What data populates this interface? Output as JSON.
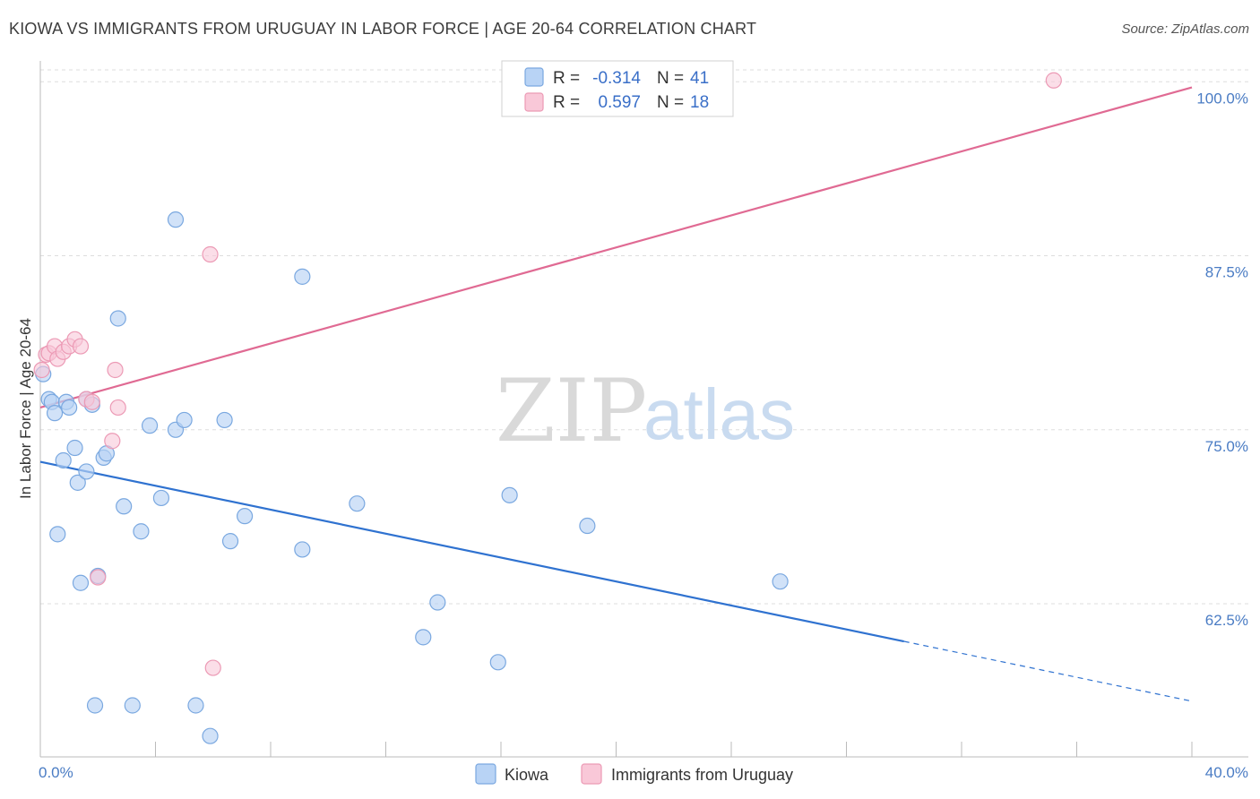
{
  "header": {
    "title": "KIOWA VS IMMIGRANTS FROM URUGUAY IN LABOR FORCE | AGE 20-64 CORRELATION CHART",
    "source": "Source: ZipAtlas.com"
  },
  "watermark": {
    "zip": "ZIP",
    "atlas": "atlas"
  },
  "legend": {
    "rows": [
      {
        "r_label": "R =",
        "r_value": "-0.314",
        "n_label": "N =",
        "n_value": "41"
      },
      {
        "r_label": "R =",
        "r_value": "0.597",
        "n_label": "N =",
        "n_value": "18"
      }
    ]
  },
  "bottom_legend": {
    "series1": "Kiowa",
    "series2": "Immigrants from Uruguay"
  },
  "colors": {
    "kiowa_fill": "#b8d3f5",
    "kiowa_stroke": "#7aa8e0",
    "kiowa_line": "#2f72d0",
    "uruguay_fill": "#f9c8d8",
    "uruguay_stroke": "#ec9ab5",
    "uruguay_line": "#e06a93",
    "grid": "#dddddd",
    "axis": "#bbbbbb"
  },
  "chart_data": {
    "type": "scatter",
    "title": "KIOWA VS IMMIGRANTS FROM URUGUAY IN LABOR FORCE | AGE 20-64 CORRELATION CHART",
    "xlabel": "",
    "ylabel": "In Labor Force | Age 20-64",
    "xlim": [
      0,
      40
    ],
    "ylim": [
      51.5,
      101.5
    ],
    "x_tick_labels": [
      "0.0%",
      "40.0%"
    ],
    "y_ticks": [
      62.5,
      75.0,
      87.5,
      100.0
    ],
    "y_tick_labels": [
      "62.5%",
      "75.0%",
      "87.5%",
      "100.0%"
    ],
    "series": [
      {
        "name": "Kiowa",
        "points": [
          [
            0.1,
            79.0
          ],
          [
            0.3,
            77.2
          ],
          [
            0.4,
            77.0
          ],
          [
            0.5,
            76.2
          ],
          [
            0.6,
            67.5
          ],
          [
            0.8,
            72.8
          ],
          [
            0.9,
            77.0
          ],
          [
            1.0,
            76.6
          ],
          [
            1.2,
            73.7
          ],
          [
            1.3,
            71.2
          ],
          [
            1.4,
            64.0
          ],
          [
            1.6,
            77.2
          ],
          [
            1.6,
            72.0
          ],
          [
            1.8,
            76.8
          ],
          [
            1.9,
            55.2
          ],
          [
            2.0,
            64.5
          ],
          [
            2.2,
            73.0
          ],
          [
            2.3,
            73.3
          ],
          [
            2.7,
            83.0
          ],
          [
            2.9,
            69.5
          ],
          [
            3.2,
            55.2
          ],
          [
            3.5,
            67.7
          ],
          [
            3.8,
            75.3
          ],
          [
            4.2,
            70.1
          ],
          [
            4.7,
            75.0
          ],
          [
            4.7,
            90.1
          ],
          [
            5.0,
            75.7
          ],
          [
            5.4,
            55.2
          ],
          [
            5.9,
            53.0
          ],
          [
            6.4,
            75.7
          ],
          [
            6.6,
            67.0
          ],
          [
            7.1,
            68.8
          ],
          [
            9.1,
            66.4
          ],
          [
            9.1,
            86.0
          ],
          [
            11.0,
            69.7
          ],
          [
            13.3,
            60.1
          ],
          [
            13.8,
            62.6
          ],
          [
            15.9,
            58.3
          ],
          [
            16.3,
            70.3
          ],
          [
            19.0,
            68.1
          ],
          [
            25.7,
            64.1
          ]
        ],
        "trend": {
          "x": [
            0,
            30.0
          ],
          "y": [
            72.7,
            59.8
          ],
          "dashed_to": [
            40,
            55.5
          ]
        }
      },
      {
        "name": "Immigrants from Uruguay",
        "points": [
          [
            0.05,
            79.3
          ],
          [
            0.2,
            80.4
          ],
          [
            0.3,
            80.5
          ],
          [
            0.5,
            81.0
          ],
          [
            0.6,
            80.1
          ],
          [
            0.8,
            80.6
          ],
          [
            1.0,
            81.0
          ],
          [
            1.2,
            81.5
          ],
          [
            1.4,
            81.0
          ],
          [
            1.6,
            77.2
          ],
          [
            1.8,
            77.0
          ],
          [
            2.0,
            64.4
          ],
          [
            2.5,
            74.2
          ],
          [
            2.6,
            79.3
          ],
          [
            2.7,
            76.6
          ],
          [
            5.9,
            87.6
          ],
          [
            6.0,
            57.9
          ],
          [
            35.2,
            100.1
          ]
        ],
        "trend": {
          "x": [
            0,
            40
          ],
          "y": [
            76.6,
            99.6
          ]
        }
      }
    ]
  }
}
